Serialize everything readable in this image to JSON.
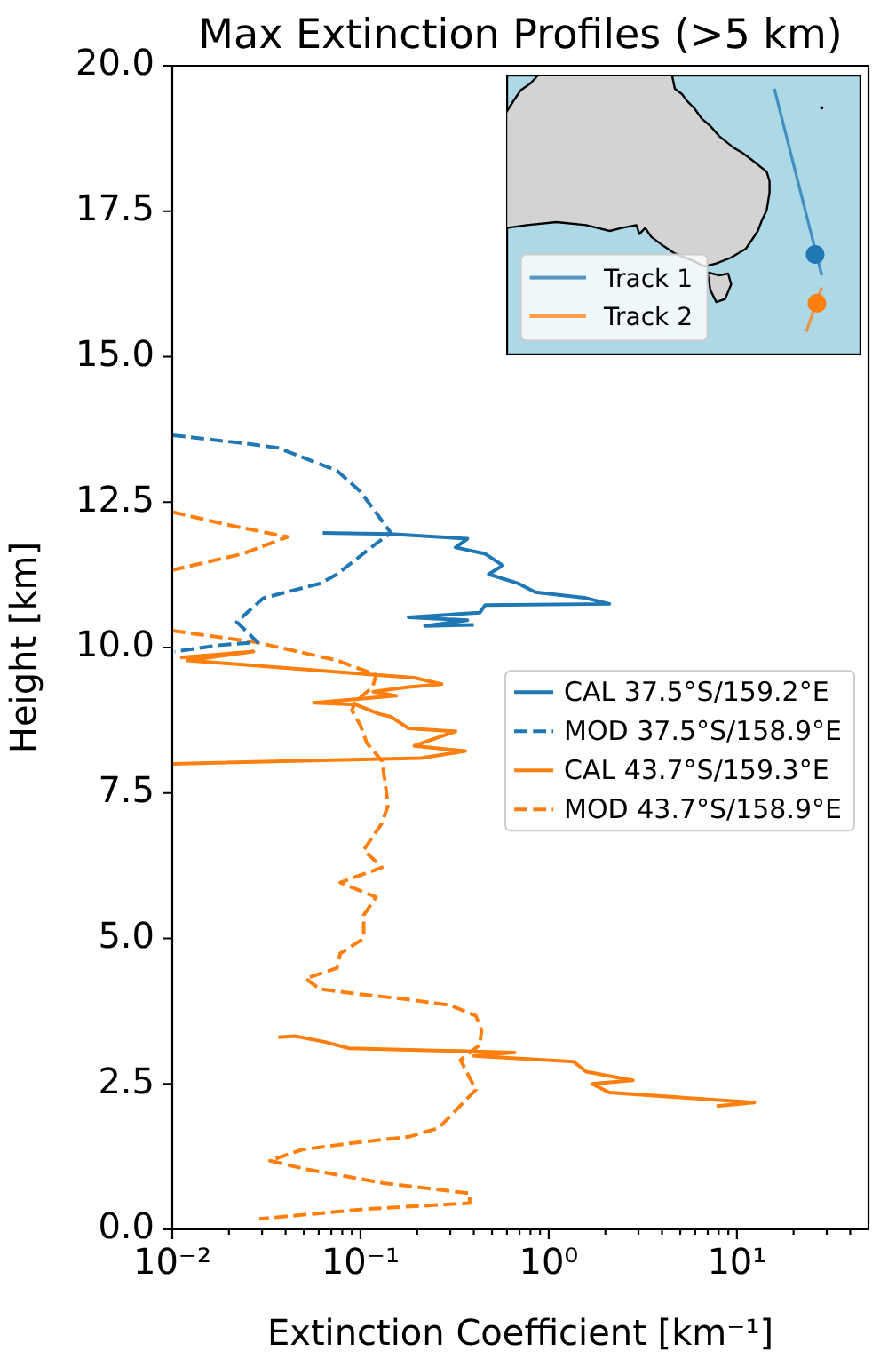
{
  "chart_data": {
    "type": "line",
    "title": "Max Extinction Profiles (>5 km)",
    "xlabel": "Extinction Coefficient [km⁻¹]",
    "ylabel": "Height [km]",
    "log": "x",
    "xlim": [
      0.01,
      50
    ],
    "xticks": [
      {
        "value": 0.01,
        "label": "10⁻²"
      },
      {
        "value": 0.02,
        "label": null
      },
      {
        "value": 0.03,
        "label": null
      },
      {
        "value": 0.04,
        "label": null
      },
      {
        "value": 0.05,
        "label": null
      },
      {
        "value": 0.06,
        "label": null
      },
      {
        "value": 0.07,
        "label": null
      },
      {
        "value": 0.08,
        "label": null
      },
      {
        "value": 0.09,
        "label": null
      },
      {
        "value": 0.1,
        "label": "10⁻¹"
      },
      {
        "value": 0.2,
        "label": null
      },
      {
        "value": 0.3,
        "label": null
      },
      {
        "value": 0.4,
        "label": null
      },
      {
        "value": 0.5,
        "label": null
      },
      {
        "value": 0.6,
        "label": null
      },
      {
        "value": 0.7,
        "label": null
      },
      {
        "value": 0.8,
        "label": null
      },
      {
        "value": 0.9,
        "label": null
      },
      {
        "value": 1,
        "label": "10⁰"
      },
      {
        "value": 2,
        "label": null
      },
      {
        "value": 3,
        "label": null
      },
      {
        "value": 4,
        "label": null
      },
      {
        "value": 5,
        "label": null
      },
      {
        "value": 6,
        "label": null
      },
      {
        "value": 7,
        "label": null
      },
      {
        "value": 8,
        "label": null
      },
      {
        "value": 9,
        "label": null
      },
      {
        "value": 10,
        "label": "10¹"
      },
      {
        "value": 20,
        "label": null
      },
      {
        "value": 30,
        "label": null
      },
      {
        "value": 40,
        "label": null
      }
    ],
    "ylim": [
      0,
      20
    ],
    "yticks": [
      {
        "value": 0,
        "label": "0.0"
      },
      2.5,
      {
        "value": 5,
        "label": "5.0"
      },
      7.5,
      {
        "value": 10,
        "label": "10.0"
      },
      12.5,
      {
        "value": 15,
        "label": "15.0"
      },
      17.5,
      {
        "value": 20,
        "label": "20.0"
      }
    ],
    "legend": "right",
    "annotations": [
      "Track 1",
      "Track 2"
    ],
    "series": [
      {
        "name": "CAL 37.5°S/159.2°E",
        "color": "#1f77b4",
        "line_style": "solid",
        "x": [
          0.063,
          0.145,
          0.37,
          0.32,
          0.46,
          0.57,
          0.48,
          0.69,
          0.85,
          1.58,
          2.1,
          0.46,
          0.43,
          0.18,
          0.37,
          0.22,
          0.4
        ],
        "values": [
          11.97,
          11.95,
          11.87,
          11.72,
          11.61,
          11.41,
          11.26,
          11.1,
          10.95,
          10.85,
          10.75,
          10.73,
          10.6,
          10.52,
          10.47,
          10.37,
          10.39
        ]
      },
      {
        "name": "MOD 37.5°S/158.9°E",
        "color": "#1f77b4",
        "line_style": "dashed",
        "x": [
          0.01,
          0.0255,
          0.0366,
          0.075,
          0.1,
          0.145,
          0.125,
          0.075,
          0.061,
          0.0305,
          0.022,
          0.0284,
          0.0177,
          0.0103
        ],
        "values": [
          13.65,
          13.5,
          13.43,
          13.04,
          12.68,
          11.97,
          11.82,
          11.26,
          11.1,
          10.85,
          10.44,
          10.09,
          10.04,
          9.93
        ]
      },
      {
        "name": "CAL 43.7°S/159.3°E",
        "color": "#ff7f0e",
        "line_style": "solid",
        "x": [
          0.011,
          0.027,
          0.012,
          0.1,
          0.193,
          0.27,
          0.18,
          0.117,
          0.155,
          0.0565,
          0.094,
          0.125,
          0.145,
          0.18,
          0.32,
          0.193,
          0.36,
          0.21,
          0.01,
          null,
          0.0366,
          0.045,
          0.065,
          0.087,
          0.66,
          0.4,
          1.36,
          1.58,
          2.8,
          1.7,
          2.1,
          12.4,
          7.8
        ],
        "values": [
          9.83,
          9.93,
          9.78,
          9.55,
          9.48,
          9.37,
          9.32,
          9.24,
          9.17,
          9.05,
          9.02,
          8.86,
          8.81,
          8.61,
          8.56,
          8.31,
          8.22,
          8.1,
          8.0,
          null,
          3.3,
          3.32,
          3.22,
          3.11,
          3.04,
          2.98,
          2.88,
          2.71,
          2.56,
          2.5,
          2.35,
          2.18,
          2.12
        ]
      },
      {
        "name": "MOD 43.7°S/158.9°E",
        "color": "#ff7f0e",
        "line_style": "dashed",
        "x": [
          0.01,
          0.019,
          0.041,
          0.0236,
          0.01,
          null,
          0.01,
          0.028,
          0.075,
          0.121,
          0.116,
          0.094,
          0.09,
          0.1,
          0.108,
          0.13,
          0.135,
          0.14,
          0.13,
          0.104,
          0.13,
          0.078,
          0.121,
          0.104,
          0.104,
          0.078,
          0.075,
          0.051,
          0.061,
          0.094,
          0.18,
          0.3,
          0.41,
          0.44,
          0.43,
          0.34,
          0.41,
          0.26,
          0.18,
          0.094,
          0.049,
          0.033,
          0.052,
          0.135,
          0.38,
          0.38,
          0.108,
          0.029
        ],
        "values": [
          12.33,
          12.12,
          11.9,
          11.61,
          11.33,
          null,
          10.29,
          10.09,
          9.78,
          9.53,
          9.32,
          9.07,
          8.92,
          8.66,
          8.36,
          8.05,
          7.69,
          7.29,
          6.98,
          6.52,
          6.22,
          5.96,
          5.71,
          5.4,
          5.0,
          4.74,
          4.49,
          4.31,
          4.13,
          4.05,
          3.95,
          3.85,
          3.67,
          3.42,
          3.17,
          2.91,
          2.4,
          1.74,
          1.59,
          1.49,
          1.37,
          1.18,
          1.03,
          0.79,
          0.62,
          0.45,
          0.35,
          0.18
        ]
      }
    ]
  }
}
